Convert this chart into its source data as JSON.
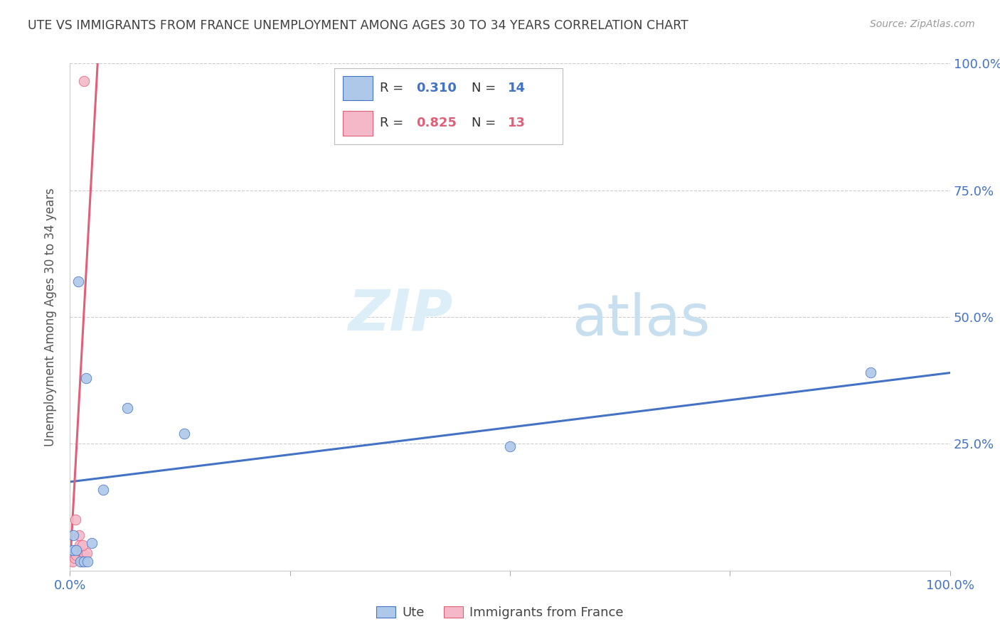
{
  "title": "UTE VS IMMIGRANTS FROM FRANCE UNEMPLOYMENT AMONG AGES 30 TO 34 YEARS CORRELATION CHART",
  "source": "Source: ZipAtlas.com",
  "ylabel": "Unemployment Among Ages 30 to 34 years",
  "watermark_zip": "ZIP",
  "watermark_atlas": "atlas",
  "xlim": [
    0,
    1.0
  ],
  "ylim": [
    0,
    1.0
  ],
  "blue_scatter_x": [
    0.003,
    0.007,
    0.012,
    0.016,
    0.02,
    0.025,
    0.009,
    0.018,
    0.065,
    0.13,
    0.5,
    0.91,
    0.038,
    0.004
  ],
  "blue_scatter_y": [
    0.04,
    0.04,
    0.018,
    0.018,
    0.018,
    0.055,
    0.57,
    0.38,
    0.32,
    0.27,
    0.245,
    0.39,
    0.16,
    0.07
  ],
  "pink_scatter_x": [
    0.003,
    0.005,
    0.007,
    0.009,
    0.011,
    0.013,
    0.015,
    0.017,
    0.019,
    0.006,
    0.01,
    0.014,
    0.016
  ],
  "pink_scatter_y": [
    0.018,
    0.025,
    0.03,
    0.04,
    0.05,
    0.018,
    0.025,
    0.03,
    0.035,
    0.1,
    0.07,
    0.05,
    0.965
  ],
  "blue_R": 0.31,
  "blue_N": 14,
  "pink_R": 0.825,
  "pink_N": 13,
  "blue_line_x": [
    0.0,
    1.0
  ],
  "blue_line_y": [
    0.175,
    0.39
  ],
  "pink_line_x": [
    0.0,
    0.032
  ],
  "pink_line_y": [
    0.01,
    1.02
  ],
  "blue_color": "#adc8e8",
  "blue_line_color": "#4472c4",
  "pink_color": "#f4b8c8",
  "pink_line_color": "#e0607a",
  "scatter_size": 110,
  "background_color": "#ffffff",
  "grid_color": "#cccccc",
  "title_color": "#404040",
  "axis_label_color": "#555555",
  "tick_color": "#4472c4"
}
